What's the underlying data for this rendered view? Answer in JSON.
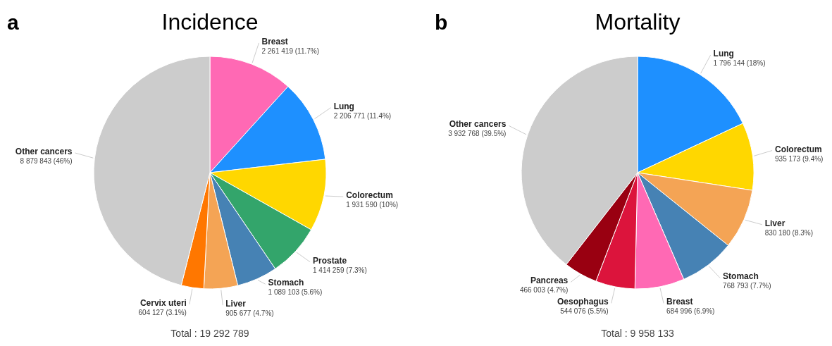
{
  "chart_data": [
    {
      "type": "pie",
      "title": "Incidence",
      "annotations": [
        "a",
        "Total : 19 292 789"
      ],
      "categories": [
        "Breast",
        "Lung",
        "Colorectum",
        "Prostate",
        "Stomach",
        "Liver",
        "Cervix uteri",
        "Other cancers"
      ],
      "values": [
        2261419,
        2206771,
        1931590,
        1414259,
        1089103,
        905677,
        604127,
        8879843
      ],
      "value_labels": [
        "2 261 419 (11.7%)",
        "2 206 771 (11.4%)",
        "1 931 590 (10%)",
        "1 414 259 (7.3%)",
        "1 089 103 (5.6%)",
        "905 677 (4.7%)",
        "604 127 (3.1%)",
        "8 879 843 (46%)"
      ],
      "colors": [
        "#ff69b4",
        "#1e90ff",
        "#ffd700",
        "#33a56b",
        "#4682b4",
        "#f4a455",
        "#ff7700",
        "#cccccc"
      ]
    },
    {
      "type": "pie",
      "title": "Mortality",
      "annotations": [
        "b",
        "Total : 9 958 133"
      ],
      "categories": [
        "Lung",
        "Colorectum",
        "Liver",
        "Stomach",
        "Breast",
        "Oesophagus",
        "Pancreas",
        "Other cancers"
      ],
      "values": [
        1796144,
        935173,
        830180,
        768793,
        684996,
        544076,
        466003,
        3932768
      ],
      "value_labels": [
        "1 796 144 (18%)",
        "935 173 (9.4%)",
        "830 180 (8.3%)",
        "768 793 (7.7%)",
        "684 996 (6.9%)",
        "544 076 (5.5%)",
        "466 003 (4.7%)",
        "3 932 768 (39.5%)"
      ],
      "colors": [
        "#1e90ff",
        "#ffd700",
        "#f4a455",
        "#4682b4",
        "#ff69b4",
        "#dc143c",
        "#990011",
        "#cccccc"
      ]
    }
  ]
}
